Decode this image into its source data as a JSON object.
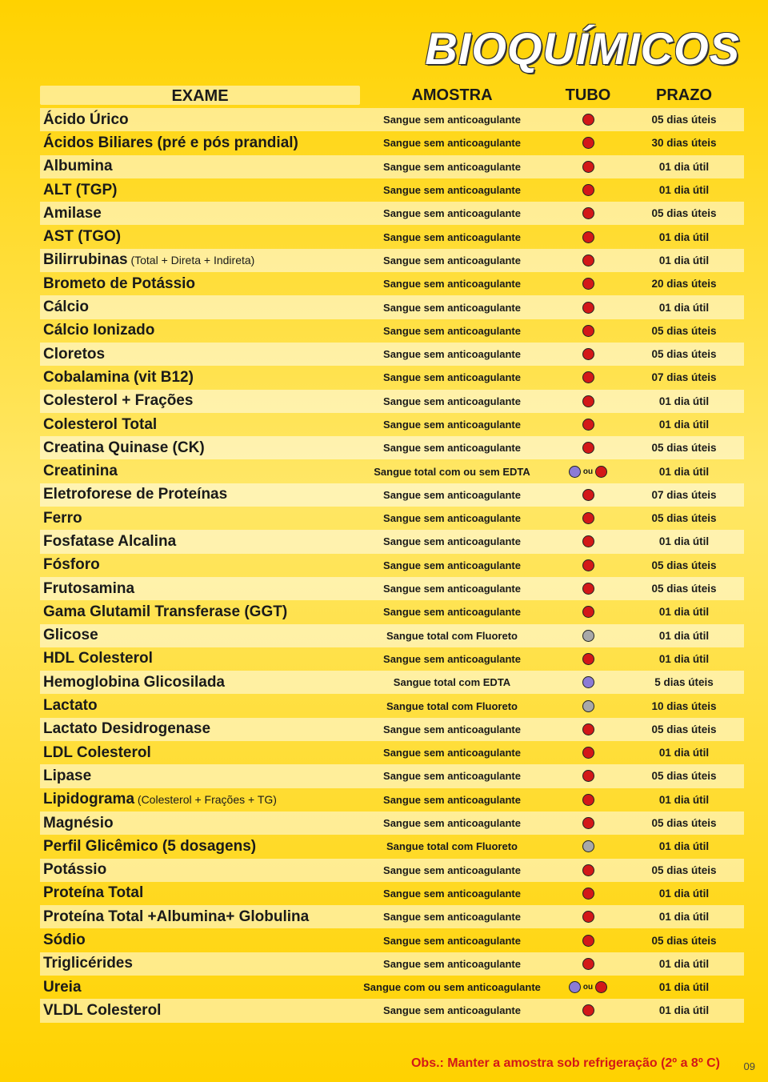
{
  "title": "BIOQUÍMICOS",
  "colors": {
    "red": "#d31818",
    "purple": "#8b7bd6",
    "gray": "#a8a8a8"
  },
  "headers": {
    "exam": "EXAME",
    "amostra": "AMOSTRA",
    "tubo": "TUBO",
    "prazo": "PRAZO"
  },
  "footnote": "Obs.: Manter a amostra sob refrigeração (2º a 8º C)",
  "page": "09",
  "ou_label": "ou",
  "rows": [
    {
      "exam": "Ácido Úrico",
      "sub": "",
      "amostra": "Sangue sem anticoagulante",
      "tubes": [
        "red"
      ],
      "prazo": "05 dias úteis"
    },
    {
      "exam": "Ácidos Biliares (pré e pós prandial)",
      "sub": "",
      "amostra": "Sangue sem anticoagulante",
      "tubes": [
        "red"
      ],
      "prazo": "30 dias úteis"
    },
    {
      "exam": "Albumina",
      "sub": "",
      "amostra": "Sangue sem anticoagulante",
      "tubes": [
        "red"
      ],
      "prazo": "01 dia útil"
    },
    {
      "exam": "ALT (TGP)",
      "sub": "",
      "amostra": "Sangue sem anticoagulante",
      "tubes": [
        "red"
      ],
      "prazo": "01 dia útil"
    },
    {
      "exam": "Amilase",
      "sub": "",
      "amostra": "Sangue sem anticoagulante",
      "tubes": [
        "red"
      ],
      "prazo": "05 dias úteis"
    },
    {
      "exam": "AST (TGO)",
      "sub": "",
      "amostra": "Sangue sem anticoagulante",
      "tubes": [
        "red"
      ],
      "prazo": "01 dia útil"
    },
    {
      "exam": "Bilirrubinas",
      "sub": " (Total + Direta + Indireta)",
      "amostra": "Sangue sem anticoagulante",
      "tubes": [
        "red"
      ],
      "prazo": "01 dia útil"
    },
    {
      "exam": "Brometo de Potássio",
      "sub": "",
      "amostra": "Sangue sem anticoagulante",
      "tubes": [
        "red"
      ],
      "prazo": "20 dias úteis"
    },
    {
      "exam": "Cálcio",
      "sub": "",
      "amostra": "Sangue sem anticoagulante",
      "tubes": [
        "red"
      ],
      "prazo": "01 dia útil"
    },
    {
      "exam": "Cálcio Ionizado",
      "sub": "",
      "amostra": "Sangue sem anticoagulante",
      "tubes": [
        "red"
      ],
      "prazo": "05 dias úteis"
    },
    {
      "exam": "Cloretos",
      "sub": "",
      "amostra": "Sangue sem anticoagulante",
      "tubes": [
        "red"
      ],
      "prazo": "05 dias úteis"
    },
    {
      "exam": "Cobalamina (vit B12)",
      "sub": "",
      "amostra": "Sangue sem anticoagulante",
      "tubes": [
        "red"
      ],
      "prazo": "07 dias úteis"
    },
    {
      "exam": "Colesterol + Frações",
      "sub": "",
      "amostra": "Sangue sem anticoagulante",
      "tubes": [
        "red"
      ],
      "prazo": "01 dia útil"
    },
    {
      "exam": "Colesterol Total",
      "sub": "",
      "amostra": "Sangue sem anticoagulante",
      "tubes": [
        "red"
      ],
      "prazo": "01 dia útil"
    },
    {
      "exam": "Creatina Quinase (CK)",
      "sub": "",
      "amostra": "Sangue sem anticoagulante",
      "tubes": [
        "red"
      ],
      "prazo": "05 dias úteis"
    },
    {
      "exam": "Creatinina",
      "sub": "",
      "amostra": "Sangue total com ou sem EDTA",
      "tubes": [
        "purple",
        "red"
      ],
      "ou": true,
      "prazo": "01 dia útil"
    },
    {
      "exam": "Eletroforese de Proteínas",
      "sub": "",
      "amostra": "Sangue sem anticoagulante",
      "tubes": [
        "red"
      ],
      "prazo": "07 dias úteis"
    },
    {
      "exam": "Ferro",
      "sub": "",
      "amostra": "Sangue sem anticoagulante",
      "tubes": [
        "red"
      ],
      "prazo": "05 dias úteis"
    },
    {
      "exam": "Fosfatase Alcalina",
      "sub": "",
      "amostra": "Sangue sem anticoagulante",
      "tubes": [
        "red"
      ],
      "prazo": "01 dia útil"
    },
    {
      "exam": "Fósforo",
      "sub": "",
      "amostra": "Sangue sem anticoagulante",
      "tubes": [
        "red"
      ],
      "prazo": "05 dias úteis"
    },
    {
      "exam": "Frutosamina",
      "sub": "",
      "amostra": "Sangue sem anticoagulante",
      "tubes": [
        "red"
      ],
      "prazo": "05 dias úteis"
    },
    {
      "exam": "Gama Glutamil Transferase (GGT)",
      "sub": "",
      "amostra": "Sangue sem anticoagulante",
      "tubes": [
        "red"
      ],
      "prazo": "01 dia útil"
    },
    {
      "exam": "Glicose",
      "sub": "",
      "amostra": "Sangue total com Fluoreto",
      "tubes": [
        "gray"
      ],
      "prazo": "01 dia útil"
    },
    {
      "exam": "HDL Colesterol",
      "sub": "",
      "amostra": "Sangue sem anticoagulante",
      "tubes": [
        "red"
      ],
      "prazo": "01 dia útil"
    },
    {
      "exam": "Hemoglobina Glicosilada",
      "sub": "",
      "amostra": "Sangue total com EDTA",
      "tubes": [
        "purple"
      ],
      "prazo": "5 dias úteis"
    },
    {
      "exam": "Lactato",
      "sub": "",
      "amostra": "Sangue total com Fluoreto",
      "tubes": [
        "gray"
      ],
      "prazo": "10 dias úteis"
    },
    {
      "exam": "Lactato Desidrogenase",
      "sub": "",
      "amostra": "Sangue sem anticoagulante",
      "tubes": [
        "red"
      ],
      "prazo": "05 dias úteis"
    },
    {
      "exam": "LDL Colesterol",
      "sub": "",
      "amostra": "Sangue sem anticoagulante",
      "tubes": [
        "red"
      ],
      "prazo": "01 dia útil"
    },
    {
      "exam": "Lipase",
      "sub": "",
      "amostra": "Sangue sem anticoagulante",
      "tubes": [
        "red"
      ],
      "prazo": "05 dias úteis"
    },
    {
      "exam": "Lipidograma",
      "sub": " (Colesterol + Frações + TG)",
      "amostra": "Sangue sem anticoagulante",
      "tubes": [
        "red"
      ],
      "prazo": "01 dia útil"
    },
    {
      "exam": "Magnésio",
      "sub": "",
      "amostra": "Sangue sem anticoagulante",
      "tubes": [
        "red"
      ],
      "prazo": "05 dias úteis"
    },
    {
      "exam": "Perfil Glicêmico (5 dosagens)",
      "sub": "",
      "amostra": "Sangue total com Fluoreto",
      "tubes": [
        "gray"
      ],
      "prazo": "01 dia útil"
    },
    {
      "exam": "Potássio",
      "sub": "",
      "amostra": "Sangue sem anticoagulante",
      "tubes": [
        "red"
      ],
      "prazo": "05 dias úteis"
    },
    {
      "exam": "Proteína Total",
      "sub": "",
      "amostra": "Sangue sem anticoagulante",
      "tubes": [
        "red"
      ],
      "prazo": "01 dia útil"
    },
    {
      "exam": "Proteína Total +Albumina+ Globulina",
      "sub": "",
      "amostra": "Sangue sem anticoagulante",
      "tubes": [
        "red"
      ],
      "prazo": "01 dia útil"
    },
    {
      "exam": "Sódio",
      "sub": "",
      "amostra": "Sangue sem anticoagulante",
      "tubes": [
        "red"
      ],
      "prazo": "05 dias úteis"
    },
    {
      "exam": "Triglicérides",
      "sub": "",
      "amostra": "Sangue sem anticoagulante",
      "tubes": [
        "red"
      ],
      "prazo": "01 dia útil"
    },
    {
      "exam": "Ureia",
      "sub": "",
      "amostra": "Sangue com ou sem anticoagulante",
      "tubes": [
        "purple",
        "red"
      ],
      "ou": true,
      "prazo": "01 dia útil"
    },
    {
      "exam": "VLDL Colesterol",
      "sub": "",
      "amostra": "Sangue sem anticoagulante",
      "tubes": [
        "red"
      ],
      "prazo": "01 dia útil"
    }
  ]
}
